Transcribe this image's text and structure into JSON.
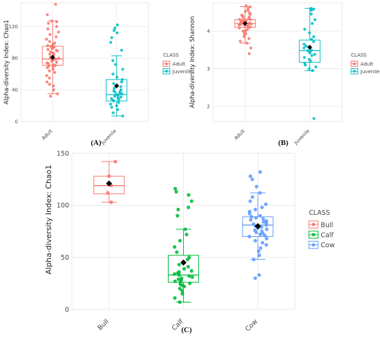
{
  "captions": [
    "(A)",
    "(B)",
    "(C)"
  ],
  "colors": {
    "adult": "#F8766D",
    "juvenile": "#00BFC4",
    "bull": "#F8766D",
    "calf": "#00BA38",
    "cow": "#619CFF",
    "mean": "#000000",
    "grid": "#e6e6e6"
  },
  "chart_data": [
    {
      "type": "box",
      "ylabel": "Alpha-diversity Index: Chao1",
      "categories": [
        "Adult",
        "Juvenile"
      ],
      "yticks": [
        0,
        40,
        80,
        120
      ],
      "ylim": [
        0,
        150
      ],
      "legend": {
        "title": "CLASS",
        "position": "right",
        "entries": [
          "Adult",
          "Juvenile"
        ]
      },
      "boxes": [
        {
          "name": "Adult",
          "min": 35,
          "q1": 71,
          "median": 79,
          "q3": 95,
          "max": 127,
          "mean": 81,
          "points": [
            148,
            135,
            127,
            126,
            124,
            120,
            117,
            113,
            110,
            107,
            104,
            101,
            99,
            97,
            96,
            95,
            94,
            93,
            92,
            91,
            90,
            89,
            88,
            87,
            86,
            85,
            84,
            83,
            82,
            81,
            80,
            79,
            78,
            77,
            76,
            75,
            74,
            73,
            72,
            71,
            70,
            69,
            68,
            66,
            64,
            62,
            58,
            55,
            50,
            47,
            45,
            40,
            35,
            32
          ]
        },
        {
          "name": "Juvenile",
          "min": 7,
          "q1": 26,
          "median": 34,
          "q3": 53,
          "max": 83,
          "mean": 45,
          "points": [
            122,
            118,
            115,
            112,
            106,
            100,
            90,
            77,
            72,
            66,
            60,
            56,
            53,
            50,
            48,
            46,
            44,
            42,
            40,
            39,
            38,
            37,
            36,
            35,
            34,
            33,
            32,
            31,
            30,
            29,
            28,
            27,
            26,
            24,
            22,
            20,
            18,
            15,
            11,
            7
          ]
        }
      ]
    },
    {
      "type": "box",
      "ylabel": "Alpha-diversity Index: Shannon",
      "categories": [
        "Adult",
        "Juvenile"
      ],
      "yticks": [
        2,
        3,
        4
      ],
      "ylim": [
        1.6,
        4.75
      ],
      "legend": {
        "title": "CLASS",
        "position": "right",
        "entries": [
          "Adult",
          "Juvenile"
        ]
      },
      "boxes": [
        {
          "name": "Adult",
          "min": 3.68,
          "q1": 4.1,
          "median": 4.2,
          "q3": 4.3,
          "max": 4.65,
          "mean": 4.2,
          "points": [
            4.67,
            4.64,
            4.6,
            4.55,
            4.52,
            4.48,
            4.45,
            4.42,
            4.4,
            4.38,
            4.35,
            4.33,
            4.31,
            4.3,
            4.28,
            4.27,
            4.26,
            4.25,
            4.24,
            4.23,
            4.22,
            4.21,
            4.2,
            4.19,
            4.18,
            4.17,
            4.16,
            4.15,
            4.14,
            4.12,
            4.1,
            4.08,
            4.05,
            4.02,
            4.0,
            3.97,
            3.93,
            3.9,
            3.85,
            3.8,
            3.73,
            3.68,
            3.55,
            3.4
          ]
        },
        {
          "name": "Juvenile",
          "min": 2.95,
          "q1": 3.17,
          "median": 3.48,
          "q3": 3.76,
          "max": 4.6,
          "mean": 3.57,
          "points": [
            4.6,
            4.58,
            4.55,
            4.45,
            4.3,
            4.2,
            4.05,
            3.95,
            3.85,
            3.78,
            3.72,
            3.65,
            3.6,
            3.55,
            3.5,
            3.48,
            3.45,
            3.42,
            3.38,
            3.35,
            3.3,
            3.25,
            3.2,
            3.15,
            3.1,
            3.05,
            3.0,
            2.95,
            1.68
          ]
        }
      ]
    },
    {
      "type": "box",
      "ylabel": "Alpha-diversity Index: Chao1",
      "categories": [
        "Bull",
        "Calf",
        "Cow"
      ],
      "yticks": [
        0,
        50,
        100,
        150
      ],
      "ylim": [
        0,
        150
      ],
      "legend": {
        "title": "CLASS",
        "position": "right",
        "entries": [
          "Bull",
          "Calf",
          "Cow"
        ]
      },
      "boxes": [
        {
          "name": "Bull",
          "min": 103,
          "q1": 111,
          "median": 119,
          "q3": 128,
          "max": 142,
          "mean": 121,
          "points": [
            142,
            128,
            119,
            112,
            103
          ]
        },
        {
          "name": "Calf",
          "min": 7,
          "q1": 26,
          "median": 33,
          "q3": 52,
          "max": 77,
          "mean": 45,
          "points": [
            116,
            113,
            110,
            104,
            98,
            96,
            90,
            77,
            72,
            66,
            60,
            55,
            50,
            48,
            45,
            43,
            41,
            39,
            37,
            36,
            35,
            34,
            33,
            32,
            31,
            30,
            29,
            28,
            27,
            26,
            25,
            24,
            23,
            22,
            20,
            18,
            15,
            11,
            7
          ]
        },
        {
          "name": "Cow",
          "min": 48,
          "q1": 70,
          "median": 81,
          "q3": 89,
          "max": 112,
          "mean": 80,
          "points": [
            132,
            128,
            125,
            118,
            112,
            108,
            104,
            101,
            98,
            96,
            94,
            92,
            90,
            89,
            88,
            87,
            86,
            85,
            84,
            83,
            82,
            81,
            80,
            79,
            78,
            77,
            76,
            75,
            74,
            73,
            72,
            71,
            70,
            68,
            66,
            64,
            62,
            59,
            56,
            52,
            48,
            33,
            30
          ]
        }
      ]
    }
  ]
}
